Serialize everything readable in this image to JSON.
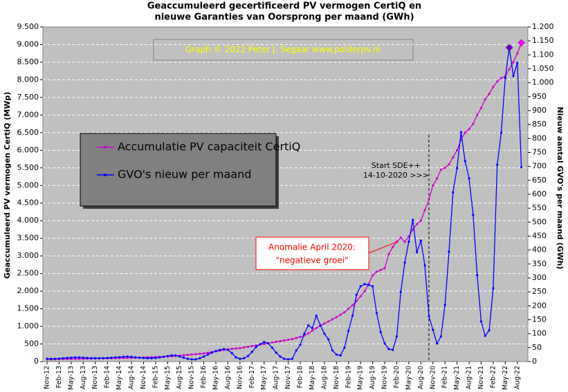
{
  "chart_data": {
    "type": "line",
    "title": [
      "Geaccumuleerd gecertificeerd PV vermogen CertiQ en",
      "nieuwe Garanties van Oorsprong per maand (GWh)"
    ],
    "y_label": "Geaccumuleerd PV vermogen CertiQ (MWp)",
    "y2_label": "Nieuw aantal GVO's per maand (GWh)",
    "watermark": "Graph © 2022 Peter J. Segaar  www.polderpv.nl",
    "annotations": {
      "sde": [
        "Start SDE++",
        "14-10-2020  >>>"
      ],
      "anomaly": [
        "Anomalie  April 2020:",
        "\"negatieve groei\""
      ]
    },
    "categories": [
      "Nov-12",
      null,
      null,
      "Feb-13",
      null,
      null,
      "May-13",
      null,
      null,
      "Aug-13",
      null,
      null,
      "Nov-13",
      null,
      null,
      "Feb-14",
      null,
      null,
      "May-14",
      null,
      null,
      "Aug-14",
      null,
      null,
      "Nov-14",
      null,
      null,
      "Feb-15",
      null,
      null,
      "May-15",
      null,
      null,
      "Aug-15",
      null,
      null,
      "Nov-15",
      null,
      null,
      "Feb-16",
      null,
      null,
      "May-16",
      null,
      null,
      "Aug-16",
      null,
      null,
      "Nov-16",
      null,
      null,
      "Feb-17",
      null,
      null,
      "May-17",
      null,
      null,
      "Aug-17",
      null,
      null,
      "Nov-17",
      null,
      null,
      "Feb-18",
      null,
      null,
      "May-18",
      null,
      null,
      "Aug-18",
      null,
      null,
      "Nov-18",
      null,
      null,
      "Feb-19",
      null,
      null,
      "May-19",
      null,
      null,
      "Aug-19",
      null,
      null,
      "Nov-19",
      null,
      null,
      "Feb-20",
      null,
      null,
      "May-20",
      null,
      null,
      "Aug-20",
      null,
      null,
      "Nov-20",
      null,
      null,
      "Feb-21",
      null,
      null,
      "May-21",
      null,
      null,
      "Aug-21",
      null,
      null,
      "Nov-21",
      null,
      null,
      "Feb-22",
      null,
      null,
      "May-22",
      null,
      null,
      "Aug-22",
      null
    ],
    "series": [
      {
        "name": "Accumulatie PV capaciteit CertiQ",
        "color": "#cc00cc",
        "values": [
          60,
          65,
          68,
          70,
          72,
          74,
          76,
          78,
          80,
          82,
          84,
          86,
          88,
          90,
          92,
          94,
          96,
          98,
          100,
          102,
          104,
          106,
          108,
          110,
          115,
          120,
          125,
          130,
          135,
          140,
          145,
          150,
          160,
          170,
          180,
          190,
          200,
          210,
          220,
          230,
          250,
          270,
          290,
          310,
          330,
          350,
          360,
          370,
          380,
          400,
          420,
          440,
          460,
          480,
          500,
          520,
          540,
          560,
          580,
          600,
          620,
          640,
          670,
          700,
          740,
          800,
          880,
          950,
          1020,
          1080,
          1140,
          1200,
          1260,
          1330,
          1400,
          1500,
          1600,
          1720,
          1850,
          2000,
          2200,
          2450,
          2550,
          2600,
          2650,
          3050,
          3250,
          3400,
          3520,
          3400,
          3550,
          3750,
          3900,
          4000,
          4300,
          4600,
          5000,
          5200,
          5450,
          5500,
          5600,
          5800,
          6000,
          6300,
          6500,
          6600,
          6750,
          7000,
          7200,
          7450,
          7600,
          7800,
          7950,
          8050,
          8100,
          8300,
          8500,
          8750,
          9050
        ]
      },
      {
        "name": "GVO's nieuw per maand",
        "color": "#0000ff",
        "axis": "y2",
        "values": [
          10,
          10,
          10,
          11,
          12,
          13,
          14,
          15,
          15,
          14,
          13,
          12,
          12,
          12,
          12,
          13,
          14,
          15,
          16,
          17,
          18,
          17,
          15,
          14,
          13,
          12,
          12,
          13,
          15,
          17,
          20,
          22,
          22,
          18,
          14,
          10,
          8,
          8,
          12,
          18,
          25,
          32,
          38,
          42,
          45,
          42,
          30,
          15,
          10,
          12,
          20,
          35,
          52,
          62,
          70,
          66,
          50,
          32,
          18,
          10,
          8,
          10,
          40,
          60,
          100,
          130,
          120,
          165,
          130,
          100,
          80,
          40,
          25,
          22,
          50,
          110,
          165,
          240,
          270,
          278,
          275,
          270,
          174,
          106,
          65,
          45,
          42,
          90,
          250,
          355,
          430,
          508,
          392,
          434,
          345,
          163,
          114,
          65,
          90,
          203,
          394,
          607,
          694,
          823,
          719,
          657,
          526,
          310,
          144,
          92,
          112,
          263,
          706,
          821,
          1017,
          1126,
          1024,
          1071,
          697
        ]
      }
    ],
    "ylim": [
      0,
      9500
    ],
    "yticks": [
      0,
      500,
      {
        "value": 1000,
        "label": "1.000"
      },
      {
        "value": 1500,
        "label": "1.500"
      },
      {
        "value": 2000,
        "label": "2.000"
      },
      {
        "value": 2500,
        "label": "2.500"
      },
      {
        "value": 3000,
        "label": "3.000"
      },
      {
        "value": 3500,
        "label": "3.500"
      },
      {
        "value": 4000,
        "label": "4.000"
      },
      {
        "value": 4500,
        "label": "4.500"
      },
      {
        "value": 5000,
        "label": "5.000"
      },
      {
        "value": 5500,
        "label": "5.500"
      },
      {
        "value": 6000,
        "label": "6.000"
      },
      {
        "value": 6500,
        "label": "6.500"
      },
      {
        "value": 7000,
        "label": "7.000"
      },
      {
        "value": 7500,
        "label": "7.500"
      },
      {
        "value": 8000,
        "label": "8.000"
      },
      {
        "value": 8500,
        "label": "8.500"
      },
      {
        "value": 9000,
        "label": "9.000"
      },
      {
        "value": 9500,
        "label": "9.500"
      }
    ],
    "y2lim": [
      0,
      1200
    ],
    "y2ticks": [
      0,
      50,
      100,
      150,
      200,
      250,
      300,
      350,
      400,
      450,
      500,
      550,
      600,
      650,
      700,
      750,
      800,
      850,
      900,
      950,
      {
        "value": 1000,
        "label": "1.000"
      },
      {
        "value": 1050,
        "label": "1.050"
      },
      {
        "value": 1100,
        "label": "1.100"
      },
      {
        "value": 1150,
        "label": "1.150"
      },
      {
        "value": 1200,
        "label": "1.200"
      }
    ],
    "grid": true
  }
}
